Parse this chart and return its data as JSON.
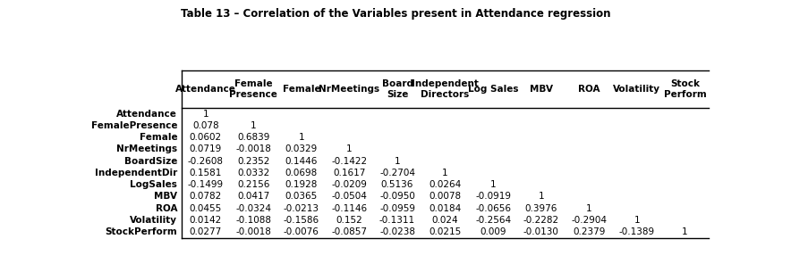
{
  "title": "Table 13 – Correlation of the Variables present in Attendance regression",
  "col_headers": [
    "Attendance",
    "Female\nPresence",
    "Female",
    "NrMeetings",
    "Board\nSize",
    "Independent\nDirectors",
    "Log Sales",
    "MBV",
    "ROA",
    "Volatility",
    "Stock\nPerform"
  ],
  "row_headers": [
    "Attendance",
    "FemalePresence",
    "Female",
    "NrMeetings",
    "BoardSize",
    "IndependentDir",
    "LogSales",
    "MBV",
    "ROA",
    "Volatility",
    "StockPerform"
  ],
  "data": [
    [
      "1",
      "",
      "",
      "",
      "",
      "",
      "",
      "",
      "",
      "",
      ""
    ],
    [
      "0.078",
      "1",
      "",
      "",
      "",
      "",
      "",
      "",
      "",
      "",
      ""
    ],
    [
      "0.0602",
      "0.6839",
      "1",
      "",
      "",
      "",
      "",
      "",
      "",
      "",
      ""
    ],
    [
      "0.0719",
      "-0.0018",
      "0.0329",
      "1",
      "",
      "",
      "",
      "",
      "",
      "",
      ""
    ],
    [
      "-0.2608",
      "0.2352",
      "0.1446",
      "-0.1422",
      "1",
      "",
      "",
      "",
      "",
      "",
      ""
    ],
    [
      "0.1581",
      "0.0332",
      "0.0698",
      "0.1617",
      "-0.2704",
      "1",
      "",
      "",
      "",
      "",
      ""
    ],
    [
      "-0.1499",
      "0.2156",
      "0.1928",
      "-0.0209",
      "0.5136",
      "0.0264",
      "1",
      "",
      "",
      "",
      ""
    ],
    [
      "0.0782",
      "0.0417",
      "0.0365",
      "-0.0504",
      "-0.0950",
      "0.0078",
      "-0.0919",
      "1",
      "",
      "",
      ""
    ],
    [
      "0.0455",
      "-0.0324",
      "-0.0213",
      "-0.1146",
      "-0.0959",
      "0.0184",
      "-0.0656",
      "0.3976",
      "1",
      "",
      ""
    ],
    [
      "0.0142",
      "-0.1088",
      "-0.1586",
      "0.152",
      "-0.1311",
      "0.024",
      "-0.2564",
      "-0.2282",
      "-0.2904",
      "1",
      ""
    ],
    [
      "0.0277",
      "-0.0018",
      "-0.0076",
      "-0.0857",
      "-0.0238",
      "0.0215",
      "0.009",
      "-0.0130",
      "0.2379",
      "-0.1389",
      "1"
    ]
  ],
  "background_color": "#ffffff",
  "line_color": "#000000",
  "text_color": "#000000",
  "title_fontsize": 8.5,
  "header_fontsize": 7.5,
  "data_fontsize": 7.5,
  "row_label_fontsize": 7.5
}
